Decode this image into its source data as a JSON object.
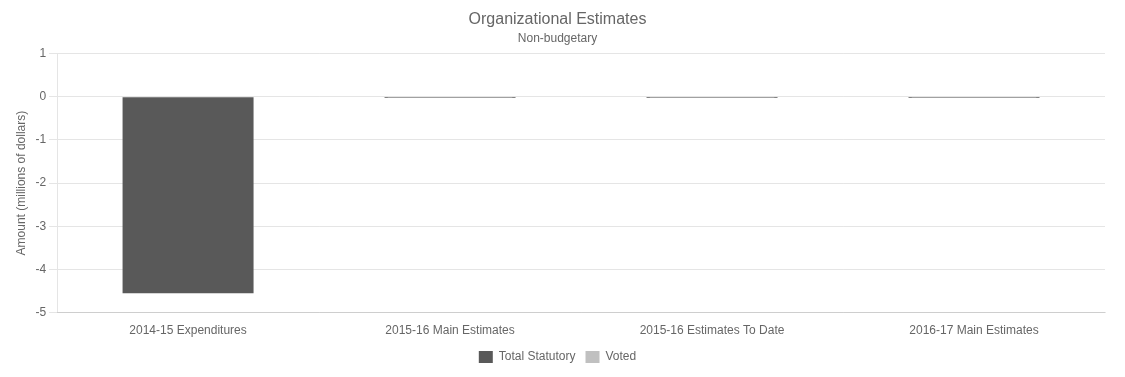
{
  "chart_data": {
    "type": "bar",
    "title": "Organizational Estimates",
    "subtitle": "Non-budgetary",
    "ylabel": "Amount (millions of dollars)",
    "categories": [
      "2014-15 Expenditures",
      "2015-16 Main Estimates",
      "2015-16 Estimates To Date",
      "2016-17 Main Estimates"
    ],
    "series": [
      {
        "name": "Total Statutory",
        "color": "#595959",
        "values": [
          -4.55,
          -0.03,
          -0.03,
          -0.03
        ]
      },
      {
        "name": "Voted",
        "color": "#c0c0c0",
        "values": [
          0.0,
          -0.02,
          -0.02,
          -0.02
        ]
      }
    ],
    "ylim": [
      -5,
      1
    ],
    "yticks": [
      -5,
      -4,
      -3,
      -2,
      -1,
      0,
      1
    ],
    "grid": true,
    "legend": "bottom"
  }
}
